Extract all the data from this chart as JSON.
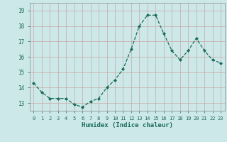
{
  "x": [
    0,
    1,
    2,
    3,
    4,
    5,
    6,
    7,
    8,
    9,
    10,
    11,
    12,
    13,
    14,
    15,
    16,
    17,
    18,
    19,
    20,
    21,
    22,
    23
  ],
  "y": [
    14.3,
    13.7,
    13.3,
    13.3,
    13.3,
    12.9,
    12.75,
    13.1,
    13.3,
    14.0,
    14.5,
    15.2,
    16.5,
    18.0,
    18.7,
    18.7,
    17.5,
    16.4,
    15.8,
    16.4,
    17.2,
    16.4,
    15.8,
    15.6
  ],
  "xlabel": "Humidex (Indice chaleur)",
  "ylim": [
    12.5,
    19.5
  ],
  "xlim": [
    -0.5,
    23.5
  ],
  "yticks": [
    13,
    14,
    15,
    16,
    17,
    18,
    19
  ],
  "xtick_labels": [
    "0",
    "1",
    "2",
    "3",
    "4",
    "5",
    "6",
    "7",
    "8",
    "9",
    "10",
    "11",
    "12",
    "13",
    "14",
    "15",
    "16",
    "17",
    "18",
    "19",
    "20",
    "21",
    "22",
    "23"
  ],
  "line_color": "#1a6b5a",
  "marker_color": "#1a6b5a",
  "bg_color": "#cce8e8",
  "grid_color": "#c8a8a8",
  "text_color": "#1a6b5a"
}
